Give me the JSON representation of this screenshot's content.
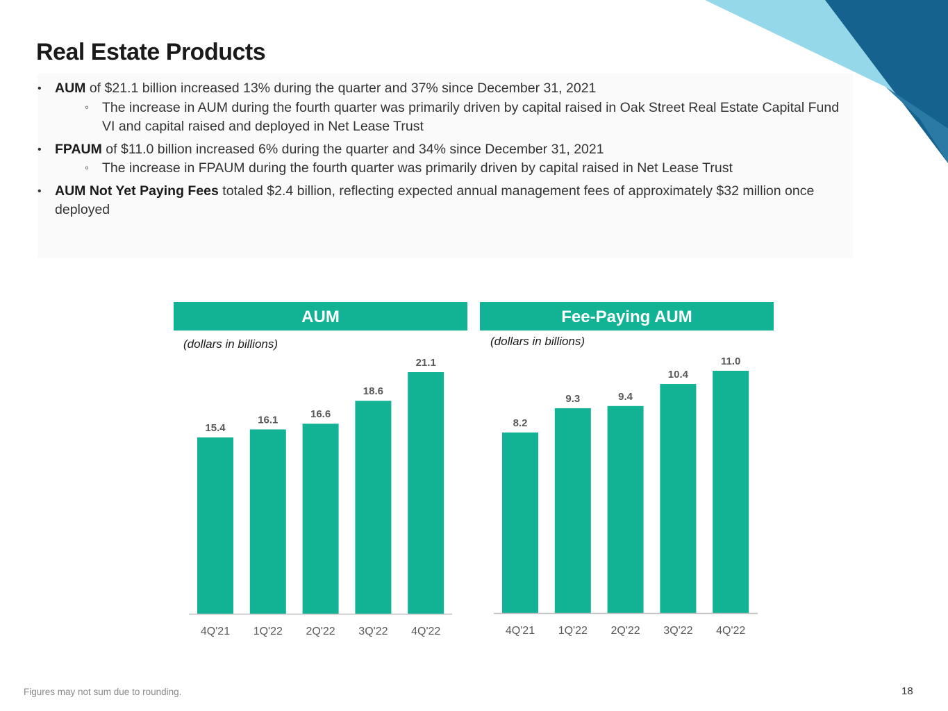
{
  "title": "Real Estate Products",
  "bullets": {
    "b1_bold": "AUM",
    "b1_text": " of $21.1 billion increased 13% during the quarter and 37% since December 31, 2021",
    "b1_sub": "The increase in AUM during the fourth quarter was primarily driven by capital raised in Oak Street Real Estate Capital Fund VI and capital raised and deployed in Net Lease Trust",
    "b2_bold": "FPAUM",
    "b2_text": " of $11.0 billion increased 6% during the quarter and 34% since December 31, 2021",
    "b2_sub": "The increase in FPAUM during the fourth quarter was primarily driven by capital raised in Net Lease Trust",
    "b3_bold": "AUM Not Yet Paying Fees",
    "b3_text": " totaled $2.4 billion, reflecting expected annual management fees of approximately $32 million once deployed"
  },
  "footer": "Figures may not sum due to rounding.",
  "page_number": "18",
  "colors": {
    "bar": "#12b394",
    "header": "#12b394",
    "corner_light": "#94d8ea",
    "corner_dark": "#15628f",
    "corner_mid": "#2a7aa5"
  },
  "chart_data": [
    {
      "type": "bar",
      "title": "AUM",
      "subtitle": "(dollars in billions)",
      "categories": [
        "4Q'21",
        "1Q'22",
        "2Q'22",
        "3Q'22",
        "4Q'22"
      ],
      "values": [
        15.4,
        16.1,
        16.6,
        18.6,
        21.1
      ],
      "labels": [
        "15.4",
        "16.1",
        "16.6",
        "18.6",
        "21.1"
      ],
      "xlabel": "",
      "ylabel": "",
      "ylim": [
        0,
        21.1
      ]
    },
    {
      "type": "bar",
      "title": "Fee-Paying AUM",
      "subtitle": "(dollars in billions)",
      "categories": [
        "4Q'21",
        "1Q'22",
        "2Q'22",
        "3Q'22",
        "4Q'22"
      ],
      "values": [
        8.2,
        9.3,
        9.4,
        10.4,
        11.0
      ],
      "labels": [
        "8.2",
        "9.3",
        "9.4",
        "10.4",
        "11.0"
      ],
      "xlabel": "",
      "ylabel": "",
      "ylim": [
        0,
        11.0
      ]
    }
  ]
}
